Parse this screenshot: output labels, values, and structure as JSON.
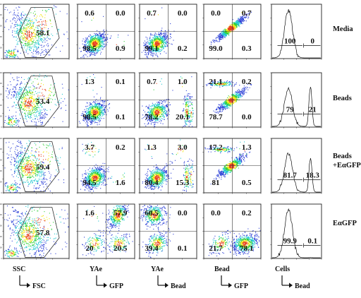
{
  "rows": [
    {
      "label_lines": [
        "Media"
      ],
      "gate": "58.1",
      "yae_gfp": [
        "0.6",
        "0.0",
        "98.5",
        "0.9"
      ],
      "yae_bead": [
        "0.7",
        "0.0",
        "99.1",
        "0.2"
      ],
      "bead_gfp": [
        "0.0",
        "0.7",
        "99.0",
        "0.3"
      ],
      "hist": [
        "100",
        "0"
      ]
    },
    {
      "label_lines": [
        "Beads"
      ],
      "gate": "53.4",
      "yae_gfp": [
        "1.3",
        "0.1",
        "98.5",
        "0.1"
      ],
      "yae_bead": [
        "0.7",
        "1.0",
        "78.2",
        "20.1"
      ],
      "bead_gfp": [
        "21.1",
        "0.2",
        "78.7",
        "0.0"
      ],
      "hist": [
        "79",
        "21"
      ]
    },
    {
      "label_lines": [
        "Beads",
        "+EαGFP"
      ],
      "gate": "59.4",
      "yae_gfp": [
        "3.7",
        "0.2",
        "94.5",
        "1.6"
      ],
      "yae_bead": [
        "1.3",
        "3.0",
        "80.4",
        "15.3"
      ],
      "bead_gfp": [
        "17.2",
        "1.3",
        "81",
        "0.5"
      ],
      "hist": [
        "81.7",
        "18.3"
      ]
    },
    {
      "label_lines": [
        "EαGFP"
      ],
      "gate": "57.8",
      "yae_gfp": [
        "1.6",
        "57.9",
        "20",
        "20.5"
      ],
      "yae_bead": [
        "60.5",
        "0.0",
        "39.4",
        "0.1"
      ],
      "bead_gfp": [
        "0.0",
        "0.2",
        "21.7",
        "78.1"
      ],
      "hist": [
        "99.9",
        "0.1"
      ]
    }
  ],
  "columns": [
    {
      "y": "SSC",
      "x": "FSC"
    },
    {
      "y": "YAe",
      "x": "GFP"
    },
    {
      "y": "YAe",
      "x": "Bead"
    },
    {
      "y": "Bead",
      "x": "GFP"
    },
    {
      "y": "Cells",
      "x": "Bead"
    }
  ],
  "colors": {
    "low": "#2b3fd6",
    "mid": "#22c7d0",
    "high": "#2fd13a",
    "peak": "#f2e40f",
    "max": "#e8401c"
  }
}
